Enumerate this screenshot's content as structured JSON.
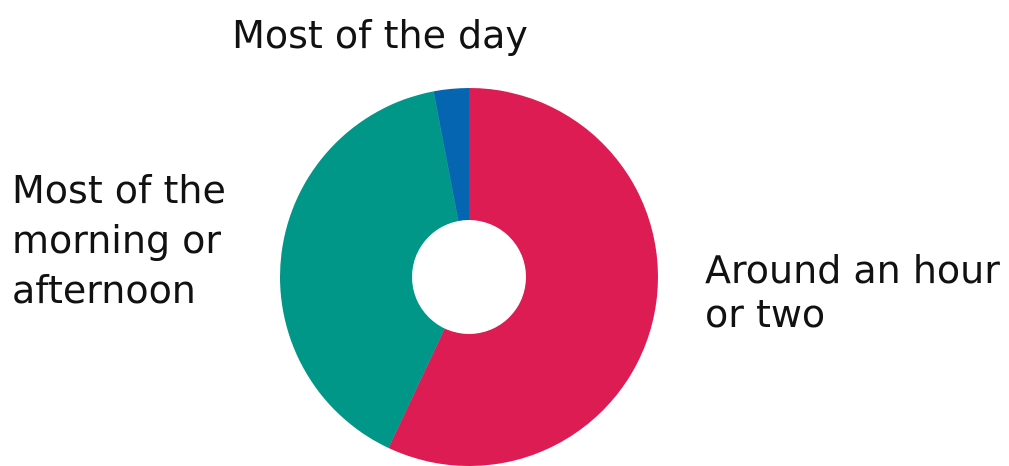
{
  "chart_data": {
    "type": "pie",
    "title": "",
    "categories": [
      "Around an hour or two",
      "Most of the morning or afternoon",
      "Most of the day"
    ],
    "values": [
      57,
      40,
      3
    ],
    "unit": "%",
    "colors": [
      "#DC1C52",
      "#009688",
      "#0565B0"
    ],
    "label_lines": [
      [
        "Around an hour",
        "or two"
      ],
      [
        "Most of the",
        "morning or",
        "afternoon"
      ],
      [
        "Most of the day"
      ]
    ],
    "donut": true,
    "legend": "none"
  }
}
